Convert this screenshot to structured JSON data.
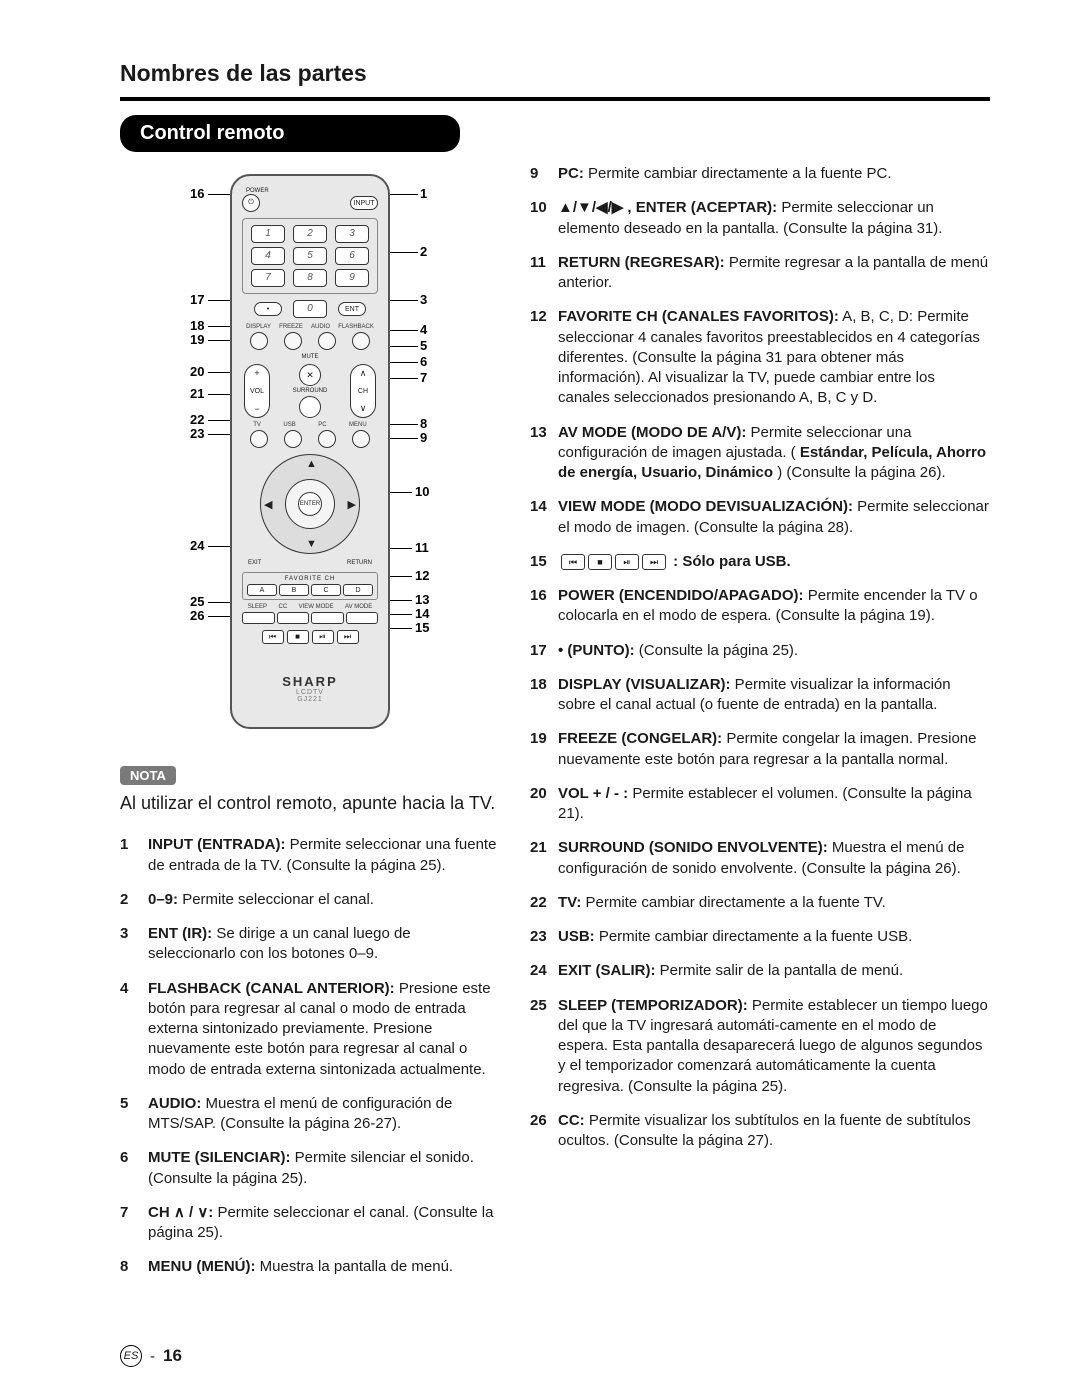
{
  "colors": {
    "text": "#1a1a1a",
    "bar_bg": "#000000",
    "bar_fg": "#ffffff",
    "nota_bg": "#7a7a7a",
    "remote_bg": "#e8e8e8",
    "rule": "#000000"
  },
  "page": {
    "title": "Nombres de las partes",
    "section": "Control remoto",
    "nota_label": "NOTA",
    "nota_text": "Al utilizar el control remoto, apunte hacia la TV.",
    "footer_lang": "ES",
    "footer_sep": "-",
    "footer_page": "16"
  },
  "remote": {
    "power_label": "POWER",
    "input_label": "INPUT",
    "ent_label": "ENT",
    "dot_label": "•",
    "row_labels_1": [
      "DISPLAY",
      "FREEZE",
      "AUDIO",
      "FLASHBACK"
    ],
    "mute_label": "MUTE",
    "vol_label": "VOL",
    "ch_label": "CH",
    "surround_label": "SURROUND",
    "row_labels_2": [
      "TV",
      "USB",
      "PC",
      "MENU"
    ],
    "enter_label": "ENTER",
    "exit_label": "EXIT",
    "return_label": "RETURN",
    "fav_title": "FAVORITE CH",
    "fav_keys": [
      "A",
      "B",
      "C",
      "D"
    ],
    "row_labels_3": [
      "SLEEP",
      "CC",
      "VIEW MODE",
      "AV MODE"
    ],
    "usb_keys": [
      "⏮",
      "■",
      "⏯",
      "⏭"
    ],
    "brand": "SHARP",
    "brand_sub1": "LCDTV",
    "brand_sub2": "GJ221",
    "numpad": [
      "1",
      "2",
      "3",
      "4",
      "5",
      "6",
      "7",
      "8",
      "9"
    ]
  },
  "callouts_left": [
    "16",
    "17",
    "18",
    "19",
    "20",
    "21",
    "22",
    "23",
    "24",
    "25",
    "26"
  ],
  "callouts_right": [
    "1",
    "2",
    "3",
    "4",
    "5",
    "6",
    "7",
    "8",
    "9",
    "10",
    "11",
    "12",
    "13",
    "14",
    "15"
  ],
  "left_items": [
    {
      "n": "1",
      "name": "INPUT (ENTRADA):",
      "text": " Permite seleccionar una fuente de entrada de la TV. (Consulte la página 25)."
    },
    {
      "n": "2",
      "name": "0–9:",
      "text": " Permite seleccionar el canal."
    },
    {
      "n": "3",
      "name": "ENT (IR):",
      "text": " Se dirige a un canal luego de seleccionarlo con los botones 0–9."
    },
    {
      "n": "4",
      "name": "FLASHBACK (CANAL ANTERIOR):",
      "text": " Presione este botón para regresar al canal o modo de entrada externa sintonizado previamente. Presione nuevamente este botón para regresar al canal o modo de entrada externa sintonizada actualmente."
    },
    {
      "n": "5",
      "name": "AUDIO:",
      "text": " Muestra el menú de configuración de MTS/SAP. (Consulte la página 26-27)."
    },
    {
      "n": "6",
      "name": "MUTE (SILENCIAR):",
      "text": " Permite silenciar el sonido. (Consulte la página 25)."
    },
    {
      "n": "7",
      "name": "CH ∧ / ∨:",
      "text": " Permite seleccionar el canal. (Consulte la página 25)."
    },
    {
      "n": "8",
      "name": "MENU (MENÚ):",
      "text": " Muestra la pantalla de menú."
    }
  ],
  "right_items": [
    {
      "n": "9",
      "name": "PC:",
      "text": " Permite cambiar directamente a la fuente PC."
    },
    {
      "n": "10",
      "name": "▲/▼/◀/▶ , ENTER (ACEPTAR):",
      "text": " Permite seleccionar un elemento deseado en la pantalla. (Consulte la página 31)."
    },
    {
      "n": "11",
      "name": "RETURN (REGRESAR):",
      "text": "  Permite regresar a la pantalla de menú anterior."
    },
    {
      "n": "12",
      "name": "FAVORITE CH (CANALES FAVORITOS):",
      "text": " A, B, C, D: Permite seleccionar 4 canales favoritos preestablecidos en 4 categorías diferentes. (Consulte la página 31 para obtener más información). Al visualizar la TV, puede cambiar entre los canales seleccionados presionando A, B, C y D."
    },
    {
      "n": "13",
      "name": "AV MODE (MODO DE A/V):",
      "text": "  Permite seleccionar una configuración de imagen ajustada. ( ",
      "bold": "Estándar, Película, Ahorro de energía, Usuario, Dinámico",
      "text2": " ) (Consulte la página 26)."
    },
    {
      "n": "14",
      "name": "VIEW MODE (MODO DEVISUALIZACIÓN):",
      "text": " Permite seleccionar el modo de imagen. (Consulte la página 28)."
    },
    {
      "n": "15",
      "name": "",
      "usb": true,
      "text": "  : Sólo para USB."
    },
    {
      "n": "16",
      "name": "POWER (ENCENDIDO/APAGADO):",
      "text": " Permite encender la TV o colocarla en el modo de espera. (Consulte la página 19)."
    },
    {
      "n": "17",
      "name": "• (PUNTO):",
      "text": " (Consulte la página 25)."
    },
    {
      "n": "18",
      "name": "DISPLAY (VISUALIZAR):",
      "text": " Permite visualizar la información sobre el canal actual (o fuente de entrada) en la pantalla."
    },
    {
      "n": "19",
      "name": "FREEZE (CONGELAR):",
      "text": " Permite congelar la imagen. Presione nuevamente este botón para regresar a la pantalla normal."
    },
    {
      "n": "20",
      "name": "VOL + / - :",
      "text": " Permite establecer el volumen. (Consulte la página 21)."
    },
    {
      "n": "21",
      "name": "SURROUND (SONIDO ENVOLVENTE):",
      "text": " Muestra el menú de configuración de sonido envolvente. (Consulte la página 26)."
    },
    {
      "n": "22",
      "name": "TV:",
      "text": " Permite cambiar directamente a la fuente TV."
    },
    {
      "n": "23",
      "name": "USB:",
      "text": " Permite cambiar directamente a la fuente USB."
    },
    {
      "n": "24",
      "name": "EXIT (SALIR):",
      "text": " Permite salir de la pantalla de menú."
    },
    {
      "n": "25",
      "name": "SLEEP (TEMPORIZADOR):",
      "text": " Permite establecer un tiempo luego del que la TV ingresará automáti-camente en el modo de espera. Esta pantalla desaparecerá luego de algunos segundos y el temporizador comenzará automáticamente la cuenta regresiva. (Consulte la página 25)."
    },
    {
      "n": "26",
      "name": "CC:",
      "text": "  Permite visualizar los subtítulos en la fuente de subtítulos ocultos. (Consulte la página 27)."
    }
  ]
}
